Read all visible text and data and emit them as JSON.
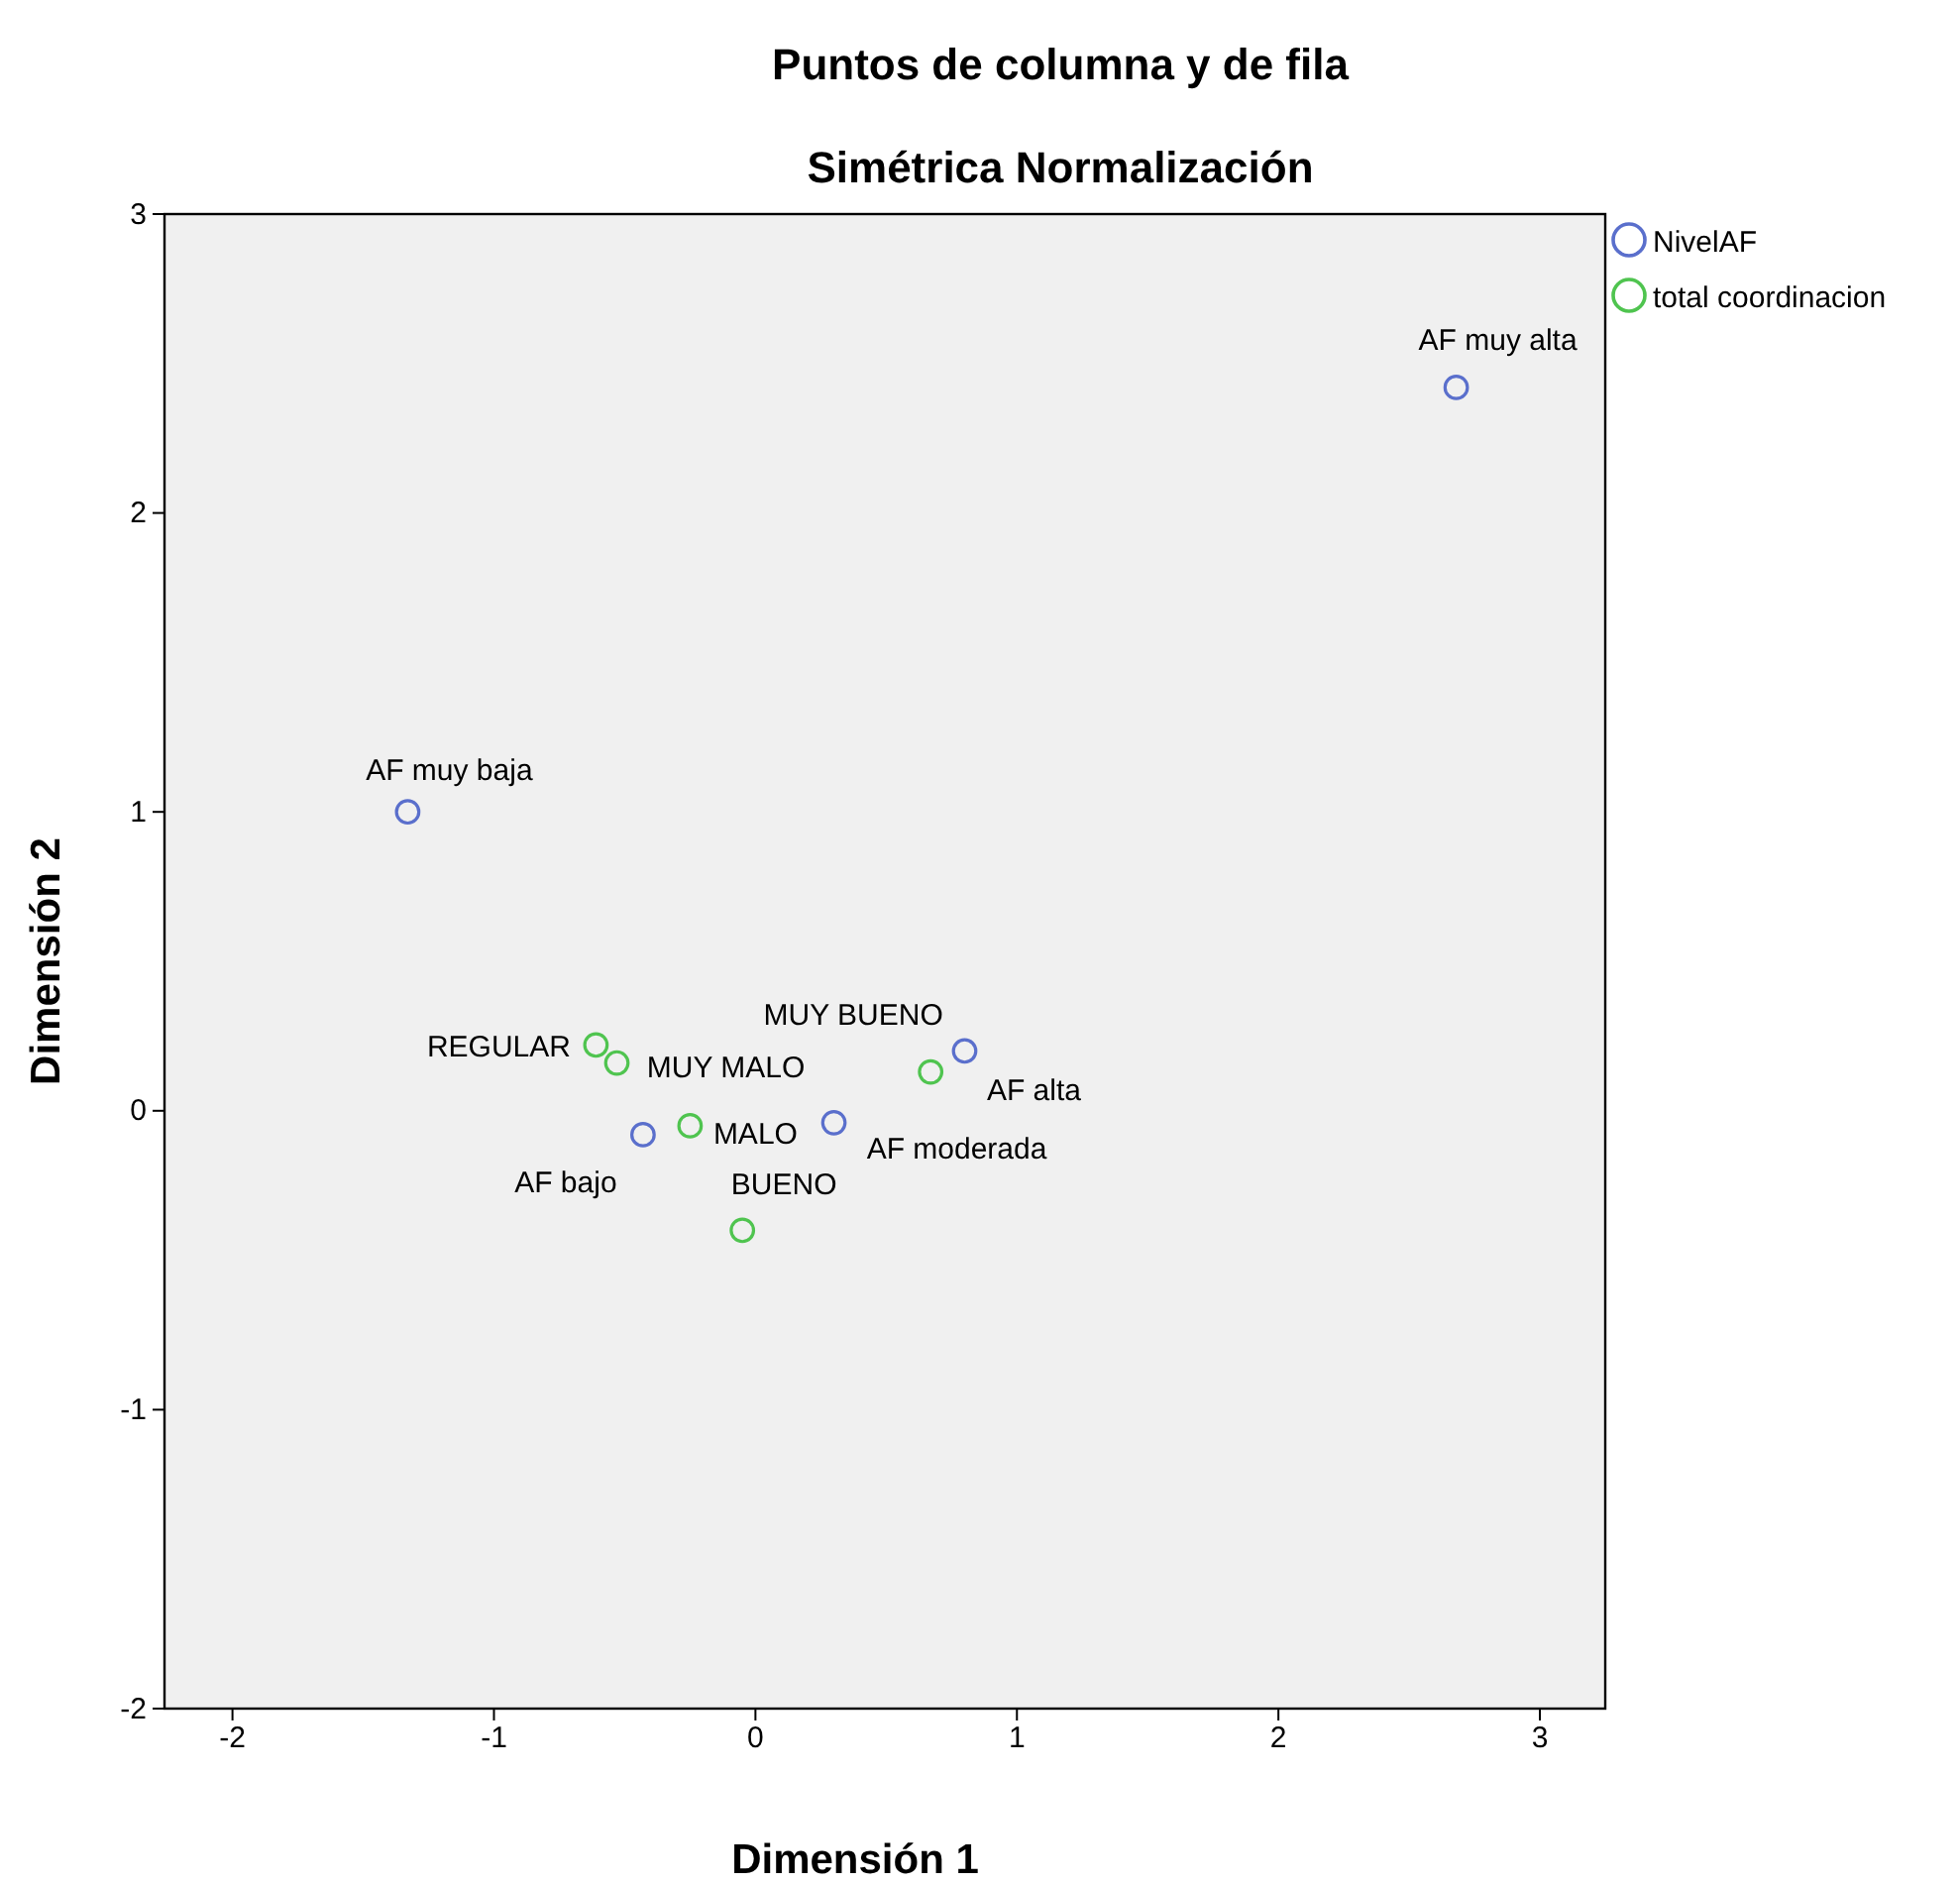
{
  "chart_data": {
    "type": "scatter",
    "title": "Puntos de columna y de fila",
    "subtitle": "Simétrica Normalización",
    "xlabel": "Dimensión 1",
    "ylabel": "Dimensión 2",
    "xlim": [
      -2.26,
      3.25
    ],
    "ylim": [
      -2,
      3
    ],
    "xticks": [
      -2,
      -1,
      0,
      1,
      2,
      3
    ],
    "yticks": [
      -2,
      -1,
      0,
      1,
      2,
      3
    ],
    "grid": false,
    "legend": "top right",
    "marker": "circle",
    "series": [
      {
        "name": "NivelAF",
        "color": "#5a6fcc",
        "x": [
          2.68,
          -1.33,
          0.8,
          0.3,
          -0.43
        ],
        "values": [
          2.42,
          1.0,
          0.2,
          -0.04,
          -0.08
        ]
      },
      {
        "name": "total coordinacion",
        "color": "#4fc44f",
        "x": [
          -0.61,
          -0.53,
          -0.25,
          -0.05,
          0.67
        ],
        "values": [
          0.22,
          0.16,
          -0.05,
          -0.4,
          0.13
        ]
      }
    ],
    "annotations": [
      {
        "text": "AF muy alta",
        "x": 2.68,
        "y": 2.42
      },
      {
        "text": "AF muy baja",
        "x": -1.33,
        "y": 1.0
      },
      {
        "text": "AF alta",
        "x": 0.8,
        "y": 0.2
      },
      {
        "text": "AF moderada",
        "x": 0.3,
        "y": -0.04
      },
      {
        "text": "AF bajo",
        "x": -0.43,
        "y": -0.08
      },
      {
        "text": "REGULAR",
        "x": -0.61,
        "y": 0.22
      },
      {
        "text": "MUY MALO",
        "x": -0.53,
        "y": 0.16
      },
      {
        "text": "MALO",
        "x": -0.25,
        "y": -0.05
      },
      {
        "text": "BUENO",
        "x": -0.05,
        "y": -0.4
      },
      {
        "text": "MUY BUENO",
        "x": 0.67,
        "y": 0.13
      }
    ]
  }
}
